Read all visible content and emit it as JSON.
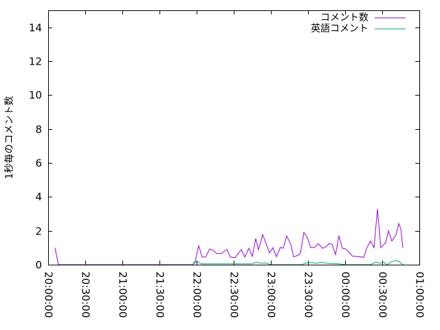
{
  "chart_data": {
    "type": "line",
    "title": "",
    "xlabel": "",
    "ylabel": "1秒毎のコメント数",
    "xlim": [
      "20:00:00",
      "01:00:00"
    ],
    "ylim": [
      0,
      15
    ],
    "x_ticks": [
      "20:00:00",
      "20:30:00",
      "21:00:00",
      "21:30:00",
      "22:00:00",
      "22:30:00",
      "23:00:00",
      "23:30:00",
      "00:00:00",
      "00:30:00",
      "01:00:00"
    ],
    "y_ticks": [
      "0",
      "2",
      "4",
      "6",
      "8",
      "10",
      "12",
      "14"
    ],
    "grid": false,
    "legend": "top-right",
    "series": [
      {
        "name": "コメント数",
        "color": "#9400d3",
        "x": [
          "20:05:30",
          "20:08:20",
          "21:56:40",
          "21:58:53",
          "22:01:40",
          "22:04:27",
          "22:07:13",
          "22:10:33",
          "22:13:20",
          "22:16:07",
          "22:20:00",
          "22:24:27",
          "22:27:13",
          "22:31:07",
          "22:36:07",
          "22:38:53",
          "22:42:13",
          "22:45:00",
          "22:47:47",
          "22:50:00",
          "22:53:20",
          "22:58:53",
          "23:01:40",
          "23:04:27",
          "23:07:47",
          "23:10:00",
          "23:12:47",
          "23:16:07",
          "23:18:20",
          "23:21:40",
          "23:23:53",
          "23:26:40",
          "23:29:27",
          "23:32:13",
          "23:35:33",
          "23:38:20",
          "23:41:40",
          "23:43:53",
          "23:47:13",
          "23:49:27",
          "23:52:13",
          "23:55:00",
          "23:57:47",
          "00:00:33",
          "00:06:07",
          "00:11:07",
          "00:15:00",
          "00:17:47",
          "00:20:33",
          "00:23:20",
          "00:26:07",
          "00:28:53",
          "00:32:47",
          "00:35:00",
          "00:37:47",
          "00:41:07",
          "00:43:20",
          "00:45:00",
          "00:46:40"
        ],
        "y": [
          1.0,
          0,
          0,
          0.2,
          1.13,
          0.45,
          0.45,
          0.93,
          0.85,
          0.66,
          0.66,
          0.89,
          0.45,
          0.42,
          0.89,
          0.45,
          0.97,
          0.5,
          1.54,
          0.87,
          1.78,
          0.7,
          1.0,
          0.47,
          1.03,
          0.97,
          1.7,
          1.2,
          0.46,
          0.55,
          0.68,
          1.9,
          1.6,
          1.0,
          1.03,
          1.25,
          0.97,
          1.03,
          1.25,
          1.2,
          0.6,
          1.7,
          0.97,
          0.93,
          0.5,
          0.48,
          0.43,
          1.03,
          1.4,
          1.0,
          3.28,
          1.0,
          1.3,
          2.0,
          1.4,
          1.75,
          2.43,
          2.1,
          1.0
        ]
      },
      {
        "name": "英語コメント",
        "color": "#009e73",
        "x": [
          "21:56:40",
          "22:00:00",
          "22:04:00",
          "22:30:00",
          "22:45:00",
          "22:48:00",
          "22:52:00",
          "22:56:00",
          "23:00:00",
          "23:25:00",
          "23:28:00",
          "23:33:00",
          "23:37:00",
          "23:41:00",
          "23:45:00",
          "23:55:00",
          "00:00:00",
          "00:20:00",
          "00:25:00",
          "00:28:00",
          "00:31:00",
          "00:34:00",
          "00:38:00",
          "00:42:00",
          "00:45:00",
          "00:47:00"
        ],
        "y": [
          0,
          0.2,
          0.05,
          0.05,
          0.05,
          0.15,
          0.08,
          0.1,
          0,
          0,
          0.1,
          0.12,
          0.08,
          0.15,
          0.08,
          0.05,
          0,
          0,
          0.15,
          0.08,
          0.15,
          0,
          0.2,
          0.25,
          0.1,
          0
        ]
      }
    ]
  }
}
